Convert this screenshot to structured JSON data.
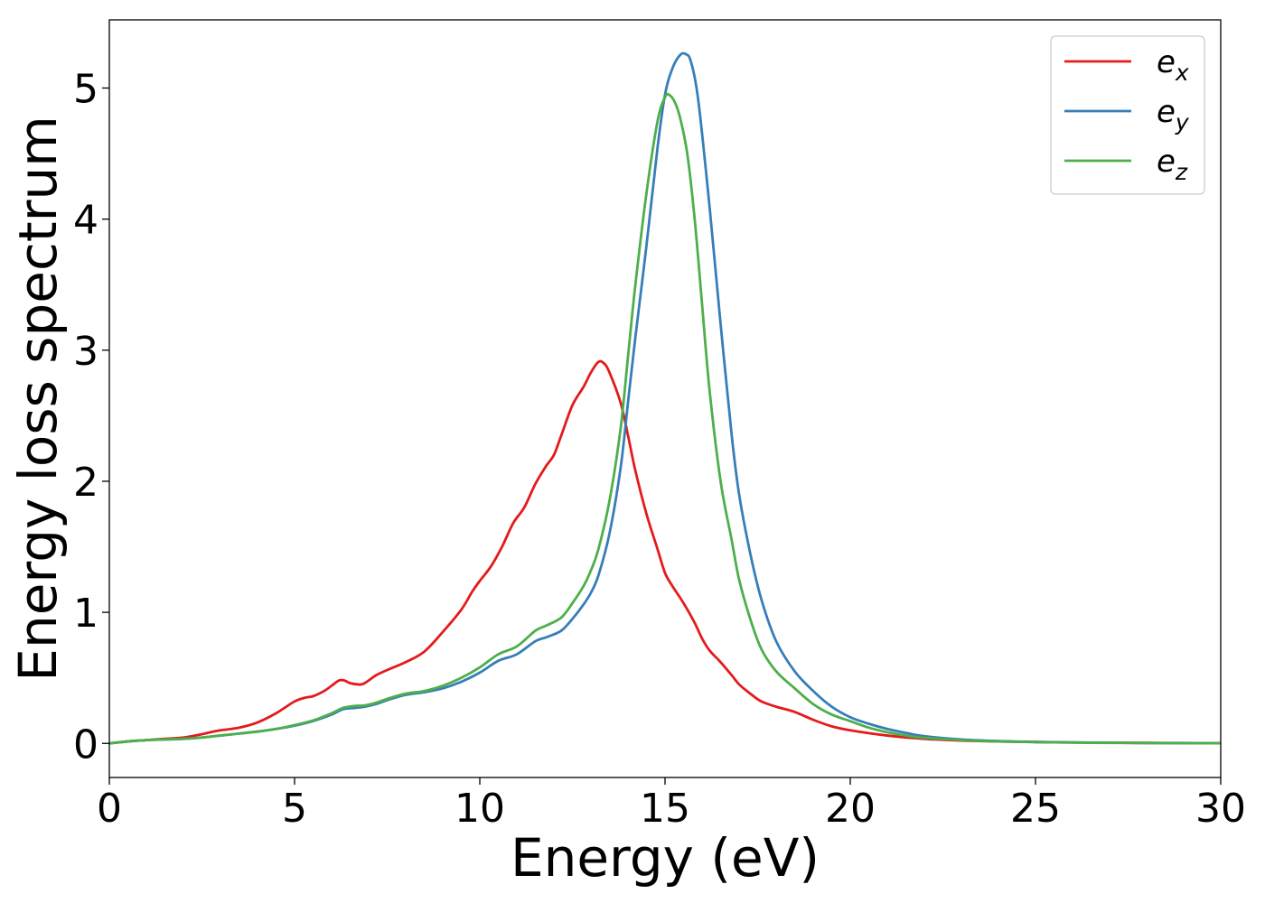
{
  "chart_data": {
    "type": "line",
    "xlabel": "Energy (eV)",
    "ylabel": "Energy loss spectrum",
    "xlim": [
      0,
      30
    ],
    "ylim": [
      -0.26,
      5.52
    ],
    "xticks": [
      0,
      5,
      10,
      15,
      20,
      25,
      30
    ],
    "yticks": [
      0,
      1,
      2,
      3,
      4,
      5
    ],
    "grid": false,
    "legend_position": "top-right",
    "series": [
      {
        "name": "e_x",
        "label_base": "e",
        "label_sub": "x",
        "color": "#e41a1c",
        "x": [
          0,
          0.5,
          1,
          1.5,
          2,
          2.5,
          2.8,
          3,
          3.5,
          4,
          4.5,
          5,
          5.3,
          5.5,
          5.8,
          6,
          6.2,
          6.35,
          6.5,
          6.8,
          7,
          7.2,
          7.5,
          8,
          8.5,
          9,
          9.5,
          9.8,
          10,
          10.3,
          10.6,
          10.9,
          11.2,
          11.5,
          11.8,
          12,
          12.2,
          12.5,
          12.8,
          13,
          13.2,
          13.35,
          13.5,
          13.8,
          14,
          14.2,
          14.5,
          14.8,
          15,
          15.2,
          15.5,
          15.8,
          16,
          16.2,
          16.5,
          16.8,
          17,
          17.3,
          17.6,
          18,
          18.5,
          19,
          19.5,
          20,
          21,
          22,
          23,
          24,
          25,
          26,
          27,
          28,
          29,
          30
        ],
        "y": [
          0.0,
          0.015,
          0.025,
          0.035,
          0.045,
          0.07,
          0.09,
          0.1,
          0.12,
          0.16,
          0.23,
          0.32,
          0.35,
          0.36,
          0.4,
          0.44,
          0.48,
          0.48,
          0.46,
          0.45,
          0.48,
          0.52,
          0.56,
          0.62,
          0.7,
          0.85,
          1.02,
          1.16,
          1.24,
          1.35,
          1.5,
          1.68,
          1.8,
          1.98,
          2.12,
          2.2,
          2.35,
          2.58,
          2.72,
          2.83,
          2.91,
          2.9,
          2.83,
          2.6,
          2.35,
          2.08,
          1.75,
          1.48,
          1.3,
          1.2,
          1.07,
          0.92,
          0.8,
          0.71,
          0.62,
          0.52,
          0.45,
          0.38,
          0.32,
          0.28,
          0.24,
          0.18,
          0.13,
          0.1,
          0.06,
          0.035,
          0.022,
          0.015,
          0.01,
          0.007,
          0.005,
          0.003,
          0.002,
          0.001
        ]
      },
      {
        "name": "e_y",
        "label_base": "e",
        "label_sub": "y",
        "color": "#377eb8",
        "x": [
          0,
          0.5,
          1,
          1.5,
          2,
          2.5,
          3,
          3.5,
          4,
          4.5,
          5,
          5.5,
          6,
          6.3,
          6.6,
          6.9,
          7.2,
          7.5,
          8,
          8.5,
          9,
          9.5,
          10,
          10.5,
          11,
          11.5,
          11.8,
          12.2,
          12.5,
          12.8,
          13,
          13.2,
          13.5,
          13.8,
          14,
          14.2,
          14.5,
          14.8,
          15,
          15.2,
          15.4,
          15.55,
          15.7,
          15.9,
          16.2,
          16.5,
          16.8,
          17,
          17.3,
          17.6,
          18,
          18.5,
          19,
          19.5,
          20,
          20.5,
          21,
          21.5,
          22,
          23,
          24,
          25,
          26,
          27,
          28,
          29,
          30
        ],
        "y": [
          0.0,
          0.015,
          0.025,
          0.03,
          0.035,
          0.045,
          0.06,
          0.075,
          0.09,
          0.11,
          0.135,
          0.17,
          0.22,
          0.26,
          0.27,
          0.28,
          0.3,
          0.33,
          0.37,
          0.39,
          0.42,
          0.47,
          0.54,
          0.63,
          0.68,
          0.78,
          0.81,
          0.86,
          0.95,
          1.06,
          1.15,
          1.28,
          1.6,
          2.1,
          2.6,
          3.1,
          3.8,
          4.55,
          4.95,
          5.15,
          5.25,
          5.26,
          5.2,
          4.9,
          4.1,
          3.2,
          2.35,
          1.9,
          1.45,
          1.1,
          0.78,
          0.55,
          0.4,
          0.28,
          0.2,
          0.15,
          0.11,
          0.08,
          0.055,
          0.03,
          0.018,
          0.012,
          0.008,
          0.005,
          0.004,
          0.003,
          0.002
        ]
      },
      {
        "name": "e_z",
        "label_base": "e",
        "label_sub": "z",
        "color": "#4daf4a",
        "x": [
          0,
          0.5,
          1,
          1.5,
          2,
          2.5,
          3,
          3.5,
          4,
          4.5,
          5,
          5.5,
          6,
          6.3,
          6.6,
          6.9,
          7.2,
          7.5,
          8,
          8.5,
          9,
          9.5,
          10,
          10.5,
          11,
          11.5,
          11.8,
          12.2,
          12.5,
          12.8,
          13,
          13.2,
          13.5,
          13.8,
          14,
          14.2,
          14.5,
          14.8,
          15,
          15.1,
          15.25,
          15.4,
          15.6,
          15.8,
          16,
          16.2,
          16.5,
          16.8,
          17,
          17.3,
          17.6,
          18,
          18.5,
          19,
          19.5,
          20,
          20.5,
          21,
          21.5,
          22,
          23,
          24,
          25,
          26,
          27,
          28,
          29,
          30
        ],
        "y": [
          0.0,
          0.015,
          0.025,
          0.03,
          0.035,
          0.045,
          0.06,
          0.075,
          0.09,
          0.11,
          0.14,
          0.175,
          0.23,
          0.27,
          0.285,
          0.29,
          0.31,
          0.34,
          0.38,
          0.4,
          0.44,
          0.5,
          0.58,
          0.68,
          0.74,
          0.86,
          0.9,
          0.96,
          1.07,
          1.2,
          1.32,
          1.48,
          1.85,
          2.4,
          2.95,
          3.5,
          4.2,
          4.75,
          4.93,
          4.95,
          4.9,
          4.78,
          4.5,
          4.0,
          3.35,
          2.7,
          2.0,
          1.55,
          1.25,
          0.95,
          0.72,
          0.55,
          0.42,
          0.3,
          0.22,
          0.17,
          0.12,
          0.085,
          0.06,
          0.042,
          0.025,
          0.015,
          0.01,
          0.006,
          0.004,
          0.003,
          0.002,
          0.001
        ]
      }
    ]
  }
}
